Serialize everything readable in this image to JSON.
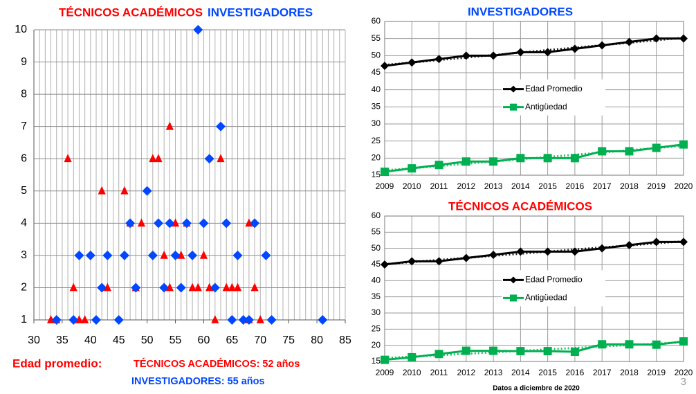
{
  "chart_data": [
    {
      "type": "scatter",
      "series": [
        {
          "name": "TÉCNICOS ACADÉMICOS",
          "color": "#ff0000",
          "marker": "triangle",
          "x": [
            33,
            34,
            38,
            39,
            62,
            68,
            70,
            37,
            43,
            48,
            54,
            58,
            59,
            61,
            64,
            65,
            66,
            69,
            53,
            56,
            60,
            47,
            49,
            55,
            57,
            68,
            42,
            46,
            36,
            51,
            52,
            63,
            54
          ],
          "y": [
            1,
            1,
            1,
            1,
            1,
            1,
            1,
            2,
            2,
            2,
            2,
            2,
            2,
            2,
            2,
            2,
            2,
            2,
            3,
            3,
            3,
            4,
            4,
            4,
            4,
            4,
            5,
            5,
            6,
            6,
            6,
            6,
            7
          ]
        },
        {
          "name": "INVESTIGADORES",
          "color": "#0047ff",
          "marker": "diamond",
          "x": [
            34,
            37,
            41,
            45,
            65,
            67,
            68,
            72,
            81,
            42,
            48,
            53,
            56,
            62,
            38,
            40,
            43,
            46,
            51,
            55,
            58,
            66,
            71,
            47,
            52,
            54,
            57,
            60,
            64,
            69,
            50,
            61,
            63,
            59
          ],
          "y": [
            1,
            1,
            1,
            1,
            1,
            1,
            1,
            1,
            1,
            2,
            2,
            2,
            2,
            2,
            3,
            3,
            3,
            3,
            3,
            3,
            3,
            3,
            3,
            4,
            4,
            4,
            4,
            4,
            4,
            4,
            5,
            6,
            7,
            10
          ]
        }
      ],
      "xlim": [
        30,
        85
      ],
      "xticks": [
        30,
        35,
        40,
        45,
        50,
        55,
        60,
        65,
        70,
        75,
        80,
        85
      ],
      "ylim": [
        1,
        10
      ],
      "yticks": [
        1,
        2,
        3,
        4,
        5,
        6,
        7,
        8,
        9,
        10
      ],
      "grid": true,
      "minor_grid": true,
      "annotations": [
        "Edad promedio:",
        "TÉCNICOS ACADÉMICOS: 52 años",
        "INVESTIGADORES: 55 años"
      ]
    },
    {
      "type": "line",
      "title": "INVESTIGADORES",
      "title_color": "#0047ff",
      "categories": [
        "2009",
        "2010",
        "2011",
        "2012",
        "2013",
        "2014",
        "2015",
        "2016",
        "2017",
        "2018",
        "2019",
        "2020"
      ],
      "series": [
        {
          "name": "Edad Promedio",
          "color": "#000000",
          "marker": "diamond",
          "values": [
            47,
            48,
            49,
            50,
            50,
            51,
            51,
            52,
            53,
            54,
            55,
            55
          ]
        },
        {
          "name": "Antigüedad",
          "color": "#00b050",
          "marker": "square",
          "values": [
            16,
            17,
            18,
            19,
            19,
            20,
            20,
            20,
            22,
            22,
            23,
            24
          ]
        }
      ],
      "ylim": [
        15,
        60
      ],
      "yticks": [
        15,
        20,
        25,
        30,
        35,
        40,
        45,
        50,
        55,
        60
      ],
      "grid": true,
      "trendline": true,
      "legend": "center"
    },
    {
      "type": "line",
      "title": "TÉCNICOS ACADÉMICOS",
      "title_color": "#ff0000",
      "categories": [
        "2009",
        "2010",
        "2011",
        "2012",
        "2013",
        "2014",
        "2015",
        "2016",
        "2017",
        "2018",
        "2019",
        "2020"
      ],
      "series": [
        {
          "name": "Edad Promedio",
          "color": "#000000",
          "marker": "diamond",
          "values": [
            45,
            46,
            46,
            47,
            48,
            49,
            49,
            49,
            50,
            51,
            52,
            52
          ]
        },
        {
          "name": "Antigüedad",
          "color": "#00b050",
          "marker": "square",
          "values": [
            15.5,
            16.3,
            17.3,
            18.3,
            18.3,
            18.2,
            18.2,
            18,
            20.3,
            20.3,
            20.2,
            21.2
          ]
        }
      ],
      "ylim": [
        15,
        60
      ],
      "yticks": [
        15,
        20,
        25,
        30,
        35,
        40,
        45,
        50,
        55,
        60
      ],
      "grid": true,
      "trendline": true,
      "legend": "center",
      "note": "Datos a diciembre de 2020"
    }
  ],
  "page_number": 3
}
